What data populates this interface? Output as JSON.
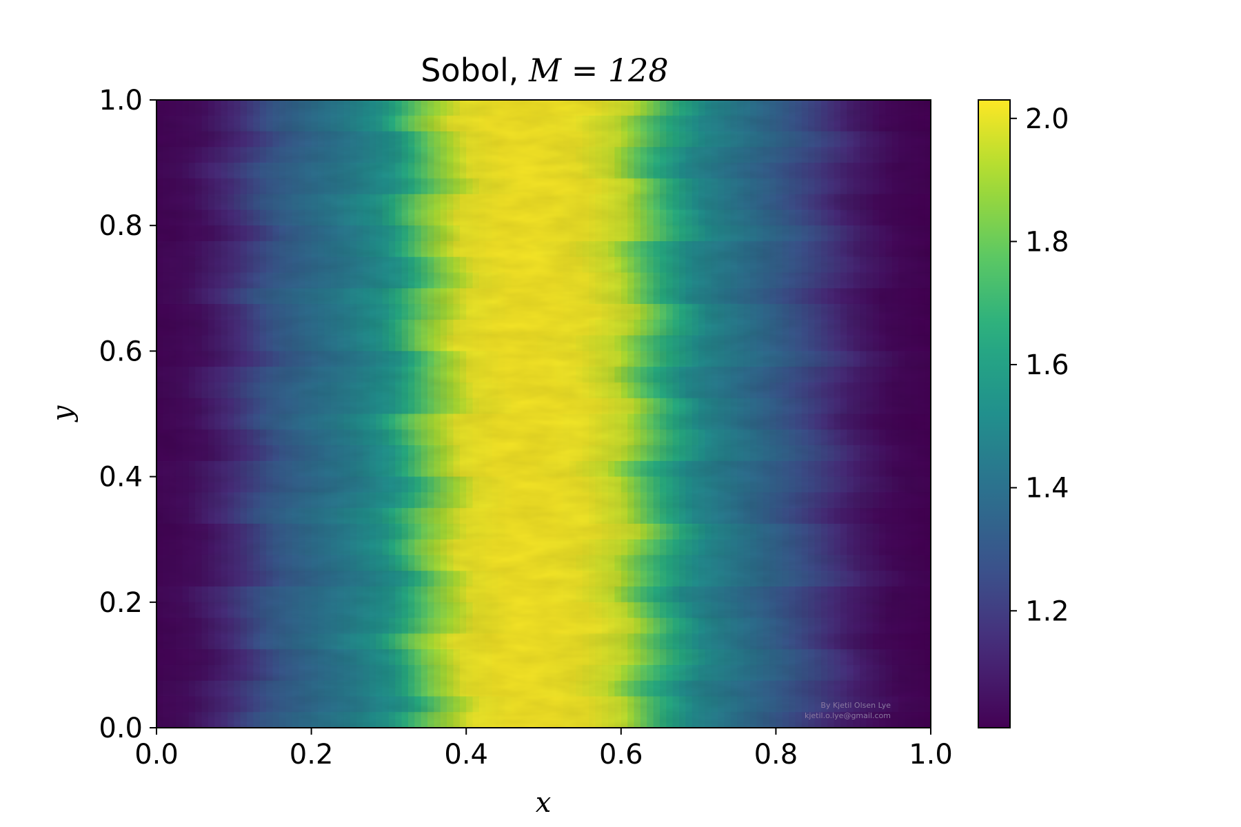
{
  "chart_data": {
    "type": "heatmap",
    "title_text": "Sobol, ",
    "title_math": "M = 128",
    "xlabel": "x",
    "ylabel": "y",
    "xlim": [
      0.0,
      1.0
    ],
    "ylim": [
      0.0,
      1.0
    ],
    "x_ticks": [
      0.0,
      0.2,
      0.4,
      0.6,
      0.8,
      1.0
    ],
    "x_tick_labels": [
      "0.0",
      "0.2",
      "0.4",
      "0.6",
      "0.8",
      "1.0"
    ],
    "y_ticks": [
      0.0,
      0.2,
      0.4,
      0.6,
      0.8,
      1.0
    ],
    "y_tick_labels": [
      "0.0",
      "0.2",
      "0.4",
      "0.6",
      "0.8",
      "1.0"
    ],
    "colorbar": {
      "colormap": "viridis",
      "range": [
        1.01,
        2.03
      ],
      "ticks": [
        1.2,
        1.4,
        1.6,
        1.8,
        2.0
      ],
      "tick_labels": [
        "1.2",
        "1.4",
        "1.6",
        "1.8",
        "2.0"
      ]
    },
    "field_profile": {
      "description_x": [
        0.0,
        0.05,
        0.1,
        0.15,
        0.2,
        0.25,
        0.3,
        0.35,
        0.4,
        0.45,
        0.5,
        0.55,
        0.6,
        0.65,
        0.7,
        0.75,
        0.8,
        0.85,
        0.9,
        0.95,
        1.0
      ],
      "values": [
        1.02,
        1.05,
        1.15,
        1.3,
        1.38,
        1.45,
        1.55,
        1.82,
        2.0,
        2.02,
        2.02,
        2.01,
        1.95,
        1.7,
        1.5,
        1.42,
        1.33,
        1.22,
        1.1,
        1.03,
        1.01
      ]
    },
    "grid": false
  },
  "credit": {
    "line1": "By Kjetil Olsen Lye",
    "line2": "kjetil.o.lye@gmail.com"
  }
}
